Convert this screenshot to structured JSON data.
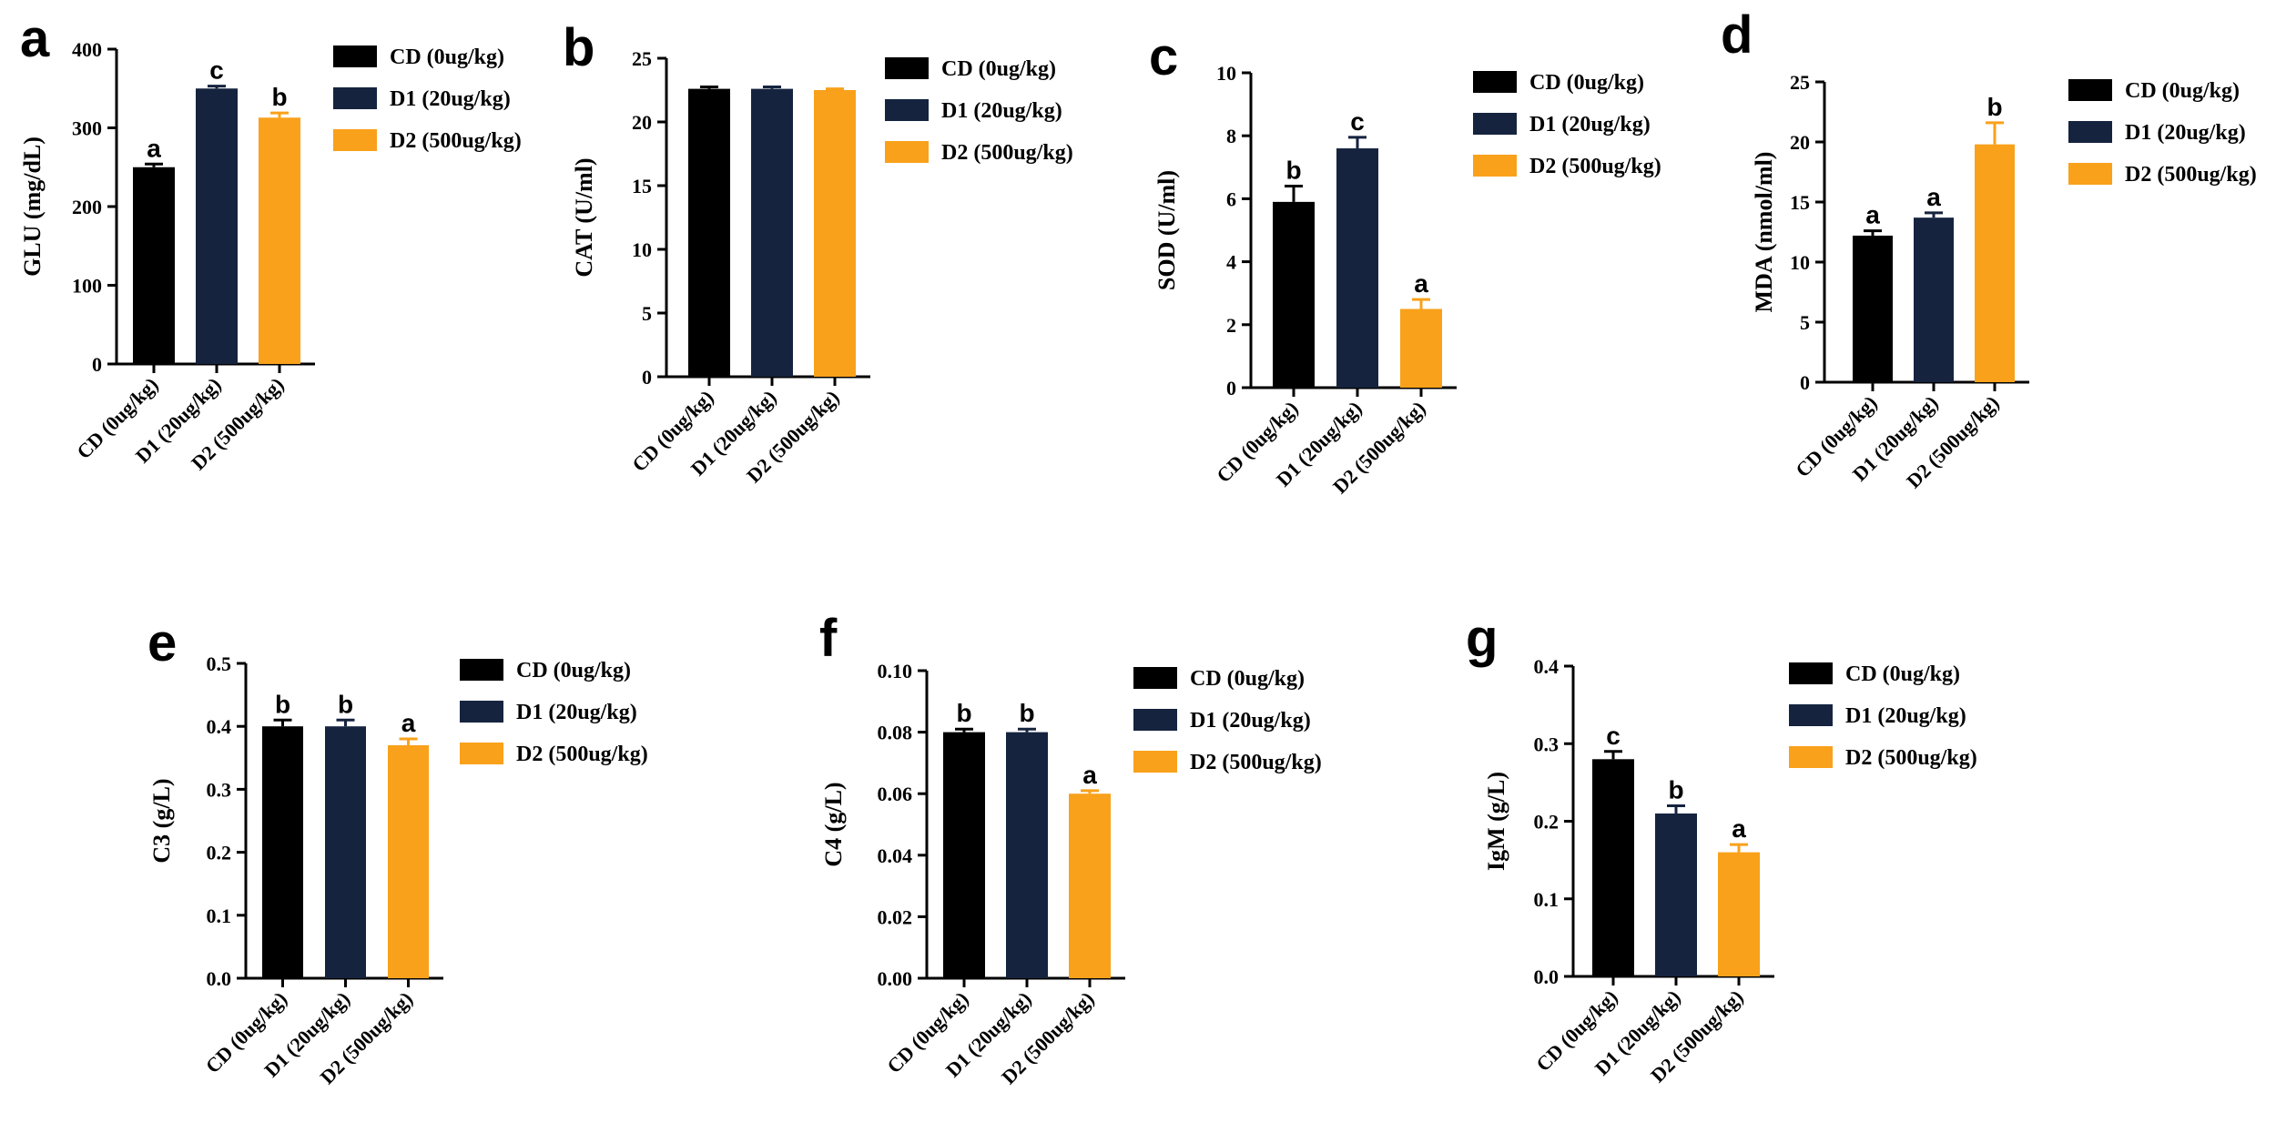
{
  "groups": [
    {
      "name": "CD (0ug/kg)",
      "color": "#000000"
    },
    {
      "name": "D1 (20ug/kg)",
      "color": "#15233f"
    },
    {
      "name": "D2 (500ug/kg)",
      "color": "#f9a11b"
    }
  ],
  "chart_data": [
    {
      "type": "bar",
      "panel": "a",
      "ylabel": "GLU (mg/dL)",
      "categories": [
        "CD (0ug/kg)",
        "D1 (20ug/kg)",
        "D2 (500ug/kg)"
      ],
      "values": [
        250,
        350,
        313
      ],
      "errors": [
        4,
        3,
        6
      ],
      "letters": [
        "a",
        "c",
        "b"
      ],
      "ylim": [
        0,
        400
      ],
      "yticks": [
        0,
        100,
        200,
        300,
        400
      ],
      "ytick_labels": [
        "0",
        "100",
        "200",
        "300",
        "400"
      ]
    },
    {
      "type": "bar",
      "panel": "b",
      "ylabel": "CAT (U/ml)",
      "categories": [
        "CD (0ug/kg)",
        "D1 (20ug/kg)",
        "D2 (500ug/kg)"
      ],
      "values": [
        22.6,
        22.6,
        22.5
      ],
      "errors": [
        0.15,
        0.15,
        0.1
      ],
      "letters": [
        "",
        "",
        ""
      ],
      "ylim": [
        0,
        25
      ],
      "yticks": [
        0,
        5,
        10,
        15,
        20,
        25
      ],
      "ytick_labels": [
        "0",
        "5",
        "10",
        "15",
        "20",
        "25"
      ]
    },
    {
      "type": "bar",
      "panel": "c",
      "ylabel": "SOD (U/ml)",
      "categories": [
        "CD (0ug/kg)",
        "D1 (20ug/kg)",
        "D2 (500ug/kg)"
      ],
      "values": [
        5.9,
        7.6,
        2.5
      ],
      "errors": [
        0.5,
        0.35,
        0.3
      ],
      "letters": [
        "b",
        "c",
        "a"
      ],
      "ylim": [
        0,
        10
      ],
      "yticks": [
        0,
        2,
        4,
        6,
        8,
        10
      ],
      "ytick_labels": [
        "0",
        "2",
        "4",
        "6",
        "8",
        "10"
      ]
    },
    {
      "type": "bar",
      "panel": "d",
      "ylabel": "MDA (nmol/ml)",
      "categories": [
        "CD (0ug/kg)",
        "D1 (20ug/kg)",
        "D2 (500ug/kg)"
      ],
      "values": [
        12.2,
        13.7,
        19.8
      ],
      "errors": [
        0.4,
        0.4,
        1.8
      ],
      "letters": [
        "a",
        "a",
        "b"
      ],
      "ylim": [
        0,
        25
      ],
      "yticks": [
        0,
        5,
        10,
        15,
        20,
        25
      ],
      "ytick_labels": [
        "0",
        "5",
        "10",
        "15",
        "20",
        "25"
      ]
    },
    {
      "type": "bar",
      "panel": "e",
      "ylabel": "C3 (g/L)",
      "categories": [
        "CD (0ug/kg)",
        "D1 (20ug/kg)",
        "D2 (500ug/kg)"
      ],
      "values": [
        0.4,
        0.4,
        0.37
      ],
      "errors": [
        0.01,
        0.01,
        0.01
      ],
      "letters": [
        "b",
        "b",
        "a"
      ],
      "ylim": [
        0,
        0.5
      ],
      "yticks": [
        0,
        0.1,
        0.2,
        0.3,
        0.4,
        0.5
      ],
      "ytick_labels": [
        "0.0",
        "0.1",
        "0.2",
        "0.3",
        "0.4",
        "0.5"
      ]
    },
    {
      "type": "bar",
      "panel": "f",
      "ylabel": "C4 (g/L)",
      "categories": [
        "CD (0ug/kg)",
        "D1 (20ug/kg)",
        "D2 (500ug/kg)"
      ],
      "values": [
        0.08,
        0.08,
        0.06
      ],
      "errors": [
        0.001,
        0.001,
        0.001
      ],
      "letters": [
        "b",
        "b",
        "a"
      ],
      "ylim": [
        0,
        0.1
      ],
      "yticks": [
        0,
        0.02,
        0.04,
        0.06,
        0.08,
        0.1
      ],
      "ytick_labels": [
        "0.00",
        "0.02",
        "0.04",
        "0.06",
        "0.08",
        "0.10"
      ]
    },
    {
      "type": "bar",
      "panel": "g",
      "ylabel": "IgM (g/L)",
      "categories": [
        "CD (0ug/kg)",
        "D1 (20ug/kg)",
        "D2 (500ug/kg)"
      ],
      "values": [
        0.28,
        0.21,
        0.16
      ],
      "errors": [
        0.01,
        0.01,
        0.01
      ],
      "letters": [
        "c",
        "b",
        "a"
      ],
      "ylim": [
        0,
        0.4
      ],
      "yticks": [
        0,
        0.1,
        0.2,
        0.3,
        0.4
      ],
      "ytick_labels": [
        "0.0",
        "0.1",
        "0.2",
        "0.3",
        "0.4"
      ]
    }
  ]
}
